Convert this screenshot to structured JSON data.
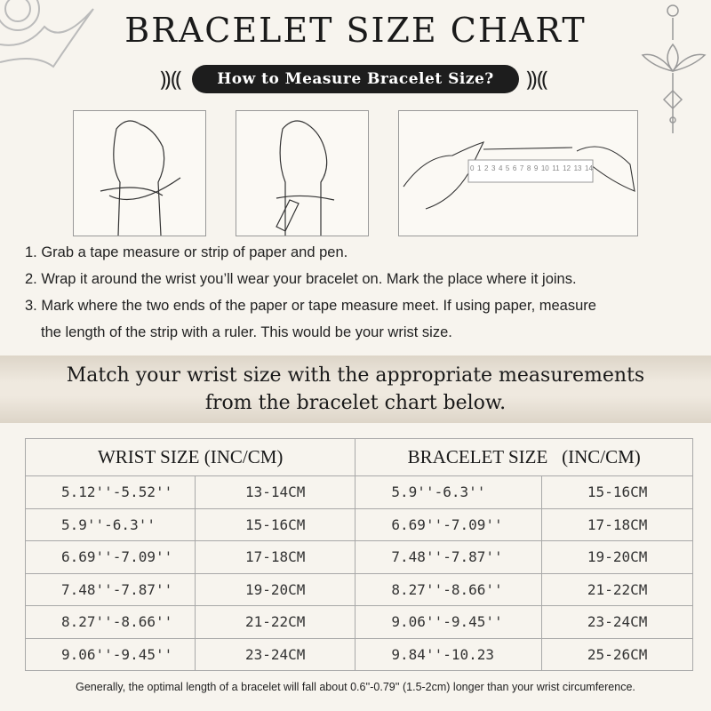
{
  "title": "BRACELET SIZE CHART",
  "subtitle": "How to Measure Bracelet Size?",
  "ruler_numbers": [
    "0",
    "1",
    "2",
    "3",
    "4",
    "5",
    "6",
    "7",
    "8",
    "9",
    "10",
    "11",
    "12",
    "13",
    "14"
  ],
  "steps": [
    "1. Grab a tape measure or strip of paper and pen.",
    "2. Wrap it around the wrist you’ll wear your bracelet on. Mark the place where it joins.",
    "3. Mark where the two ends of the paper or tape measure meet. If using paper, measure",
    "the length of the strip with a ruler. This would be your wrist size."
  ],
  "band": {
    "line1": "Match your wrist size with the appropriate measurements",
    "line2": "from the bracelet chart below."
  },
  "table": {
    "headers": [
      "WRIST SIZE (INC/CM)",
      "BRACELET SIZE   (INC/CM)"
    ],
    "rows": [
      [
        "5.12''-5.52''",
        "13-14CM",
        "5.9''-6.3''",
        "15-16CM"
      ],
      [
        "5.9''-6.3''",
        "15-16CM",
        "6.69''-7.09''",
        "17-18CM"
      ],
      [
        "6.69''-7.09''",
        "17-18CM",
        "7.48''-7.87''",
        "19-20CM"
      ],
      [
        "7.48''-7.87''",
        "19-20CM",
        "8.27''-8.66''",
        "21-22CM"
      ],
      [
        "8.27''-8.66''",
        "21-22CM",
        "9.06''-9.45''",
        "23-24CM"
      ],
      [
        "9.06''-9.45''",
        "23-24CM",
        "9.84''-10.23",
        "25-26CM"
      ]
    ]
  },
  "footnote": "Generally, the optimal length of a bracelet will fall about 0.6''-0.79'' (1.5-2cm) longer than your wrist circumference.",
  "colors": {
    "background": "#f7f4ee",
    "pill": "#1d1d1d",
    "band": "#e6dfd3"
  }
}
